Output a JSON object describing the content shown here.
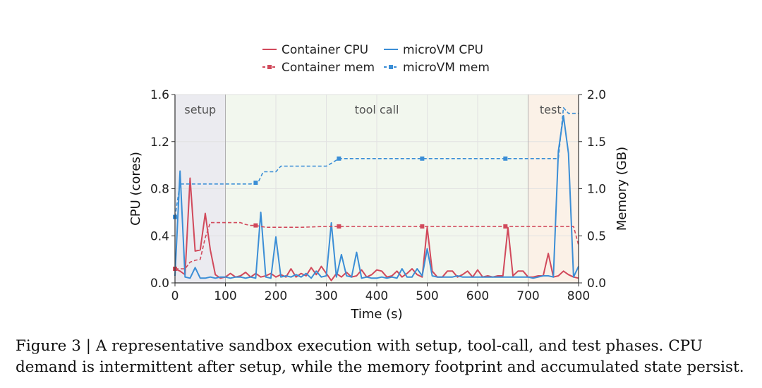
{
  "legend": {
    "items": [
      {
        "label": "Container CPU",
        "color": "#d1495b",
        "style": "solid"
      },
      {
        "label": "microVM CPU",
        "color": "#3b8ed6",
        "style": "solid"
      },
      {
        "label": "Container mem",
        "color": "#d1495b",
        "style": "dashed-square"
      },
      {
        "label": "microVM mem",
        "color": "#3b8ed6",
        "style": "dashed-square"
      }
    ]
  },
  "caption": {
    "line1": "Figure 3 | A representative sandbox execution with setup, tool-call, and test phases.  CPU",
    "line2": "demand is intermittent after setup, while the memory footprint and accumulated state persist."
  },
  "chart_data": {
    "type": "line",
    "xlabel": "Time (s)",
    "ylabel": "CPU (cores)",
    "y2label": "Memory (GB)",
    "xlim": [
      0,
      800
    ],
    "ylim": [
      0,
      1.6
    ],
    "y2lim": [
      0,
      2.0
    ],
    "xticks": [
      0,
      100,
      200,
      300,
      400,
      500,
      600,
      700,
      800
    ],
    "yticks": [
      "0.0",
      "0.4",
      "0.8",
      "1.2",
      "1.6"
    ],
    "y2ticks": [
      "0.0",
      "0.5",
      "1.0",
      "1.5",
      "2.0"
    ],
    "grid": true,
    "legend_position": "top-center",
    "phases": [
      {
        "label": "setup",
        "start": 0,
        "end": 100,
        "color": "#ebebf0"
      },
      {
        "label": "tool call",
        "start": 100,
        "end": 700,
        "color": "#f2f7ee"
      },
      {
        "label": "test",
        "start": 700,
        "end": 800,
        "color": "#fbf1e7"
      }
    ],
    "series": [
      {
        "name": "Container CPU",
        "axis": "left",
        "color": "#d1495b",
        "x": [
          0,
          10,
          20,
          30,
          40,
          50,
          60,
          70,
          80,
          90,
          100,
          110,
          120,
          130,
          140,
          150,
          160,
          170,
          180,
          190,
          200,
          210,
          220,
          230,
          240,
          250,
          260,
          270,
          280,
          290,
          300,
          310,
          320,
          330,
          340,
          350,
          360,
          370,
          380,
          390,
          400,
          410,
          420,
          430,
          440,
          450,
          460,
          470,
          480,
          490,
          500,
          510,
          520,
          530,
          540,
          550,
          560,
          570,
          580,
          590,
          600,
          610,
          620,
          630,
          640,
          650,
          660,
          670,
          680,
          690,
          700,
          710,
          720,
          730,
          740,
          750,
          760,
          770,
          780,
          790,
          800
        ],
        "y": [
          0.12,
          0.1,
          0.07,
          0.89,
          0.27,
          0.28,
          0.59,
          0.28,
          0.07,
          0.04,
          0.05,
          0.08,
          0.05,
          0.06,
          0.09,
          0.05,
          0.08,
          0.05,
          0.06,
          0.08,
          0.05,
          0.07,
          0.05,
          0.12,
          0.05,
          0.08,
          0.06,
          0.13,
          0.07,
          0.14,
          0.08,
          0.02,
          0.08,
          0.05,
          0.09,
          0.05,
          0.06,
          0.11,
          0.05,
          0.07,
          0.11,
          0.1,
          0.05,
          0.06,
          0.1,
          0.05,
          0.08,
          0.12,
          0.07,
          0.05,
          0.47,
          0.1,
          0.05,
          0.05,
          0.1,
          0.1,
          0.05,
          0.07,
          0.1,
          0.05,
          0.11,
          0.05,
          0.06,
          0.05,
          0.06,
          0.06,
          0.47,
          0.06,
          0.1,
          0.1,
          0.05,
          0.05,
          0.06,
          0.06,
          0.25,
          0.05,
          0.06,
          0.1,
          0.07,
          0.05,
          0.04
        ]
      },
      {
        "name": "microVM CPU",
        "axis": "left",
        "color": "#3b8ed6",
        "x": [
          0,
          10,
          20,
          30,
          40,
          50,
          60,
          70,
          80,
          90,
          100,
          110,
          120,
          130,
          140,
          150,
          160,
          170,
          180,
          190,
          200,
          210,
          220,
          230,
          240,
          250,
          260,
          270,
          280,
          290,
          300,
          310,
          320,
          330,
          340,
          350,
          360,
          370,
          380,
          390,
          400,
          410,
          420,
          430,
          440,
          450,
          460,
          470,
          480,
          490,
          500,
          510,
          520,
          530,
          540,
          550,
          560,
          570,
          580,
          590,
          600,
          610,
          620,
          630,
          640,
          650,
          660,
          670,
          680,
          690,
          700,
          710,
          720,
          730,
          740,
          750,
          760,
          770,
          780,
          790,
          800
        ],
        "y": [
          0.06,
          0.95,
          0.05,
          0.04,
          0.13,
          0.04,
          0.04,
          0.05,
          0.04,
          0.05,
          0.05,
          0.04,
          0.05,
          0.05,
          0.04,
          0.05,
          0.04,
          0.6,
          0.05,
          0.04,
          0.39,
          0.05,
          0.06,
          0.05,
          0.07,
          0.05,
          0.08,
          0.04,
          0.1,
          0.05,
          0.06,
          0.51,
          0.05,
          0.24,
          0.06,
          0.05,
          0.26,
          0.04,
          0.05,
          0.04,
          0.04,
          0.05,
          0.04,
          0.05,
          0.04,
          0.12,
          0.05,
          0.05,
          0.12,
          0.06,
          0.29,
          0.06,
          0.05,
          0.05,
          0.05,
          0.05,
          0.06,
          0.05,
          0.05,
          0.05,
          0.05,
          0.05,
          0.05,
          0.05,
          0.05,
          0.05,
          0.05,
          0.05,
          0.05,
          0.05,
          0.05,
          0.04,
          0.05,
          0.06,
          0.06,
          0.05,
          1.12,
          1.42,
          1.1,
          0.05,
          0.14
        ]
      },
      {
        "name": "Container mem",
        "axis": "right",
        "color": "#d1495b",
        "dashed": true,
        "x": [
          0,
          10,
          20,
          30,
          40,
          50,
          60,
          70,
          80,
          90,
          100,
          110,
          120,
          130,
          140,
          150,
          160,
          170,
          180,
          190,
          200,
          250,
          300,
          325,
          350,
          400,
          450,
          490,
          520,
          570,
          600,
          650,
          660,
          700,
          750,
          760,
          790,
          800
        ],
        "y": [
          0.15,
          0.15,
          0.15,
          0.22,
          0.24,
          0.25,
          0.48,
          0.64,
          0.64,
          0.64,
          0.64,
          0.64,
          0.64,
          0.64,
          0.62,
          0.61,
          0.61,
          0.6,
          0.59,
          0.59,
          0.59,
          0.59,
          0.6,
          0.6,
          0.6,
          0.6,
          0.6,
          0.6,
          0.6,
          0.6,
          0.6,
          0.6,
          0.6,
          0.6,
          0.6,
          0.6,
          0.6,
          0.4
        ],
        "markers": [
          0,
          160,
          325,
          490,
          655
        ]
      },
      {
        "name": "microVM mem",
        "axis": "right",
        "color": "#3b8ed6",
        "dashed": true,
        "x": [
          0,
          10,
          20,
          100,
          150,
          165,
          175,
          200,
          210,
          300,
          310,
          325,
          350,
          400,
          450,
          490,
          500,
          550,
          600,
          650,
          655,
          700,
          760,
          770,
          780,
          790,
          800
        ],
        "y": [
          0.7,
          1.05,
          1.05,
          1.05,
          1.05,
          1.07,
          1.18,
          1.18,
          1.24,
          1.24,
          1.27,
          1.32,
          1.32,
          1.32,
          1.32,
          1.32,
          1.32,
          1.32,
          1.32,
          1.32,
          1.32,
          1.32,
          1.32,
          1.86,
          1.8,
          1.8,
          1.8
        ],
        "markers": [
          0,
          160,
          325,
          490,
          655
        ]
      }
    ]
  }
}
